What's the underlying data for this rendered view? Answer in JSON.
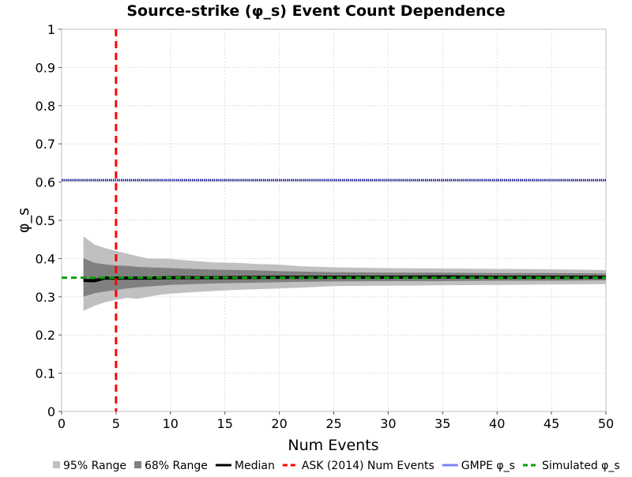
{
  "chart_data": {
    "type": "area",
    "title": "Source-strike (φ_s) Event Count Dependence",
    "xlabel": "Num Events",
    "ylabel": "φ_s",
    "xlim": [
      0,
      50
    ],
    "ylim": [
      0,
      1
    ],
    "x_ticks": [
      "0",
      "5",
      "10",
      "15",
      "20",
      "25",
      "30",
      "35",
      "40",
      "45",
      "50"
    ],
    "y_ticks": [
      "0",
      "0.1",
      "0.2",
      "0.3",
      "0.4",
      "0.5",
      "0.6",
      "0.7",
      "0.8",
      "0.9",
      "1"
    ],
    "grid": true,
    "legend_position": "bottom",
    "legend": [
      {
        "label": "95% Range",
        "color": "#c0c0c0",
        "style": "box"
      },
      {
        "label": "68% Range",
        "color": "#808080",
        "style": "box"
      },
      {
        "label": "Median",
        "color": "#000000",
        "style": "solid"
      },
      {
        "label": "ASK (2014) Num Events",
        "color": "#ff0000",
        "style": "dashed"
      },
      {
        "label": "GMPE φ_s",
        "color": "#8080ff",
        "style": "solid"
      },
      {
        "label": "Simulated φ_s",
        "color": "#00a000",
        "style": "dashed"
      }
    ],
    "series": [
      {
        "name": "95% Range",
        "color": "#c0c0c0",
        "x": [
          2,
          3,
          4,
          5,
          6,
          7,
          8,
          9,
          10,
          12,
          14,
          16,
          18,
          20,
          22,
          25,
          30,
          35,
          40,
          45,
          50
        ],
        "upper": [
          0.458,
          0.437,
          0.427,
          0.42,
          0.413,
          0.406,
          0.4,
          0.4,
          0.399,
          0.394,
          0.39,
          0.389,
          0.386,
          0.384,
          0.38,
          0.377,
          0.375,
          0.374,
          0.373,
          0.372,
          0.37
        ],
        "lower": [
          0.263,
          0.276,
          0.286,
          0.292,
          0.297,
          0.295,
          0.3,
          0.305,
          0.308,
          0.312,
          0.315,
          0.318,
          0.32,
          0.322,
          0.324,
          0.328,
          0.329,
          0.33,
          0.331,
          0.332,
          0.333
        ]
      },
      {
        "name": "68% Range",
        "color": "#808080",
        "x": [
          2,
          3,
          4,
          5,
          6,
          7,
          8,
          9,
          10,
          12,
          14,
          16,
          18,
          20,
          22,
          25,
          30,
          35,
          40,
          45,
          50
        ],
        "upper": [
          0.401,
          0.389,
          0.385,
          0.382,
          0.381,
          0.378,
          0.377,
          0.376,
          0.375,
          0.373,
          0.371,
          0.37,
          0.369,
          0.367,
          0.366,
          0.364,
          0.363,
          0.363,
          0.362,
          0.362,
          0.361
        ],
        "lower": [
          0.3,
          0.309,
          0.314,
          0.318,
          0.322,
          0.325,
          0.327,
          0.329,
          0.331,
          0.333,
          0.335,
          0.336,
          0.337,
          0.338,
          0.339,
          0.34,
          0.341,
          0.341,
          0.342,
          0.342,
          0.343
        ]
      },
      {
        "name": "Median",
        "color": "#000000",
        "x": [
          2,
          3,
          4,
          5,
          6,
          7,
          8,
          10,
          15,
          20,
          25,
          30,
          35,
          40,
          45,
          50
        ],
        "values": [
          0.343,
          0.342,
          0.349,
          0.349,
          0.349,
          0.349,
          0.349,
          0.35,
          0.35,
          0.351,
          0.351,
          0.351,
          0.352,
          0.351,
          0.351,
          0.351
        ]
      },
      {
        "name": "ASK (2014) Num Events",
        "color": "#ff0000",
        "x_value": 5
      },
      {
        "name": "GMPE φ_s",
        "color": "#8080ff",
        "y_value": 0.605
      },
      {
        "name": "Simulated φ_s",
        "color": "#00a000",
        "y_value": 0.35
      }
    ]
  }
}
